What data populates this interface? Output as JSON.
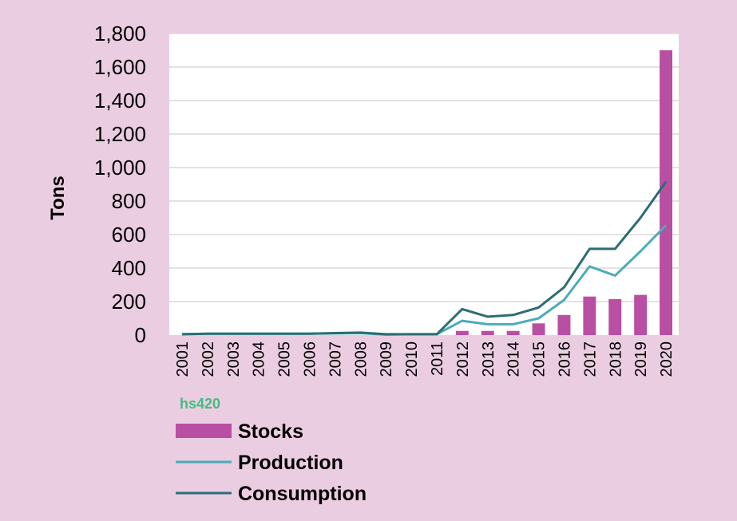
{
  "chart_data": {
    "type": "bar",
    "categories": [
      "2001",
      "2002",
      "2003",
      "2004",
      "2005",
      "2006",
      "2007",
      "2008",
      "2009",
      "2010",
      "2011",
      "2012",
      "2013",
      "2014",
      "2015",
      "2016",
      "2017",
      "2018",
      "2019",
      "2020"
    ],
    "series": [
      {
        "name": "Stocks",
        "kind": "bar",
        "color": "#b84fa3",
        "values": [
          0,
          0,
          0,
          0,
          0,
          0,
          0,
          0,
          0,
          0,
          0,
          25,
          25,
          25,
          70,
          120,
          230,
          215,
          240,
          1700
        ]
      },
      {
        "name": "Production",
        "kind": "line",
        "color": "#4aacb8",
        "values": [
          5,
          8,
          8,
          8,
          8,
          8,
          10,
          12,
          3,
          5,
          5,
          85,
          65,
          65,
          100,
          210,
          410,
          355,
          500,
          655
        ]
      },
      {
        "name": "Consumption",
        "kind": "line",
        "color": "#2c6e72",
        "values": [
          5,
          8,
          8,
          8,
          8,
          8,
          12,
          15,
          5,
          5,
          5,
          155,
          110,
          120,
          165,
          285,
          515,
          515,
          700,
          915
        ]
      }
    ],
    "ylabel": "Tons",
    "ylim": [
      0,
      1800
    ],
    "yticks": [
      0,
      200,
      400,
      600,
      800,
      1000,
      1200,
      1400,
      1600,
      1800
    ],
    "ytick_labels": [
      "0",
      "200",
      "400",
      "600",
      "800",
      "1,000",
      "1,200",
      "1,400",
      "1,600",
      "1,800"
    ],
    "grid": "horizontal",
    "legend": "bottom-left",
    "logo_text": "hs420"
  },
  "colors": {
    "background": "#ebcde2",
    "plot_area": "#ffffff",
    "grid": "#d9d9d9"
  }
}
